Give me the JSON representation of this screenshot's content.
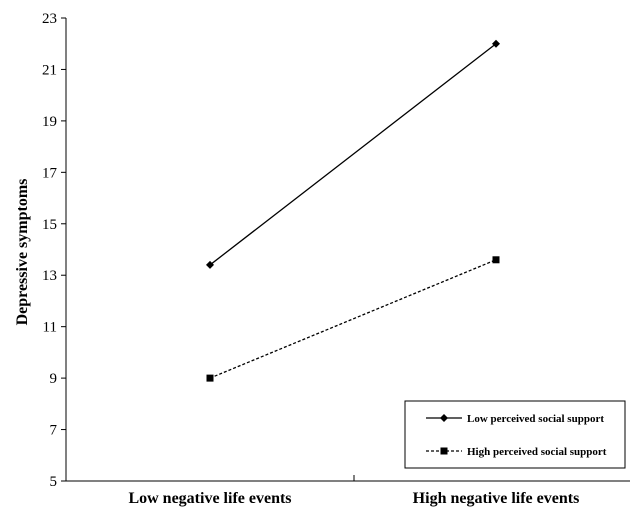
{
  "chart_data": {
    "type": "line",
    "title": "",
    "xlabel": "",
    "ylabel": "Depressive symptoms",
    "categories": [
      "Low negative life events",
      "High negative life events"
    ],
    "ylim": [
      5,
      23
    ],
    "yticks": [
      5,
      7,
      9,
      11,
      13,
      15,
      17,
      19,
      21,
      23
    ],
    "grid": false,
    "legend_position": "bottom-right",
    "series": [
      {
        "name": "Low perceived social support",
        "values": [
          13.4,
          22.0
        ],
        "line_style": "solid",
        "marker": "diamond",
        "color": "#000000"
      },
      {
        "name": "High perceived social support",
        "values": [
          9.0,
          13.6
        ],
        "line_style": "dashed",
        "marker": "square",
        "color": "#000000"
      }
    ]
  }
}
